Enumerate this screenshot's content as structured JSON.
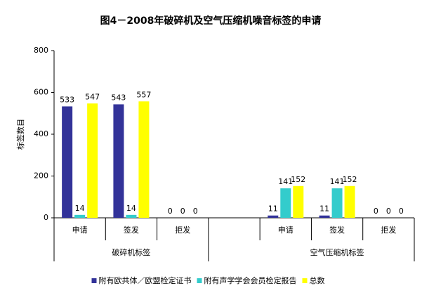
{
  "chart_data": {
    "type": "bar",
    "title": "图4－2008年破碎机及空气压缩机噪音标签的申请",
    "y_label": "标签数目",
    "category_groups": [
      {
        "name": "破碎机标签",
        "categories": [
          "申请",
          "签发",
          "拒发"
        ]
      },
      {
        "name": null,
        "categories": [
          null
        ]
      },
      {
        "name": "空气压缩机标签",
        "categories": [
          "申请",
          "签发",
          "拒发"
        ]
      }
    ],
    "series": [
      {
        "name": "附有欧共体／欧盟检定证书",
        "color": "#333399",
        "values": [
          533,
          543,
          0,
          null,
          11,
          11,
          0
        ]
      },
      {
        "name": "附有声学学会会员检定报告",
        "color": "#33cccc",
        "values": [
          14,
          14,
          0,
          null,
          141,
          141,
          0
        ]
      },
      {
        "name": "总数",
        "color": "#ffff00",
        "values": [
          547,
          557,
          0,
          null,
          152,
          152,
          0
        ]
      }
    ],
    "ylim": [
      0,
      800
    ],
    "yticks": [
      0,
      200,
      400,
      600,
      800
    ]
  }
}
